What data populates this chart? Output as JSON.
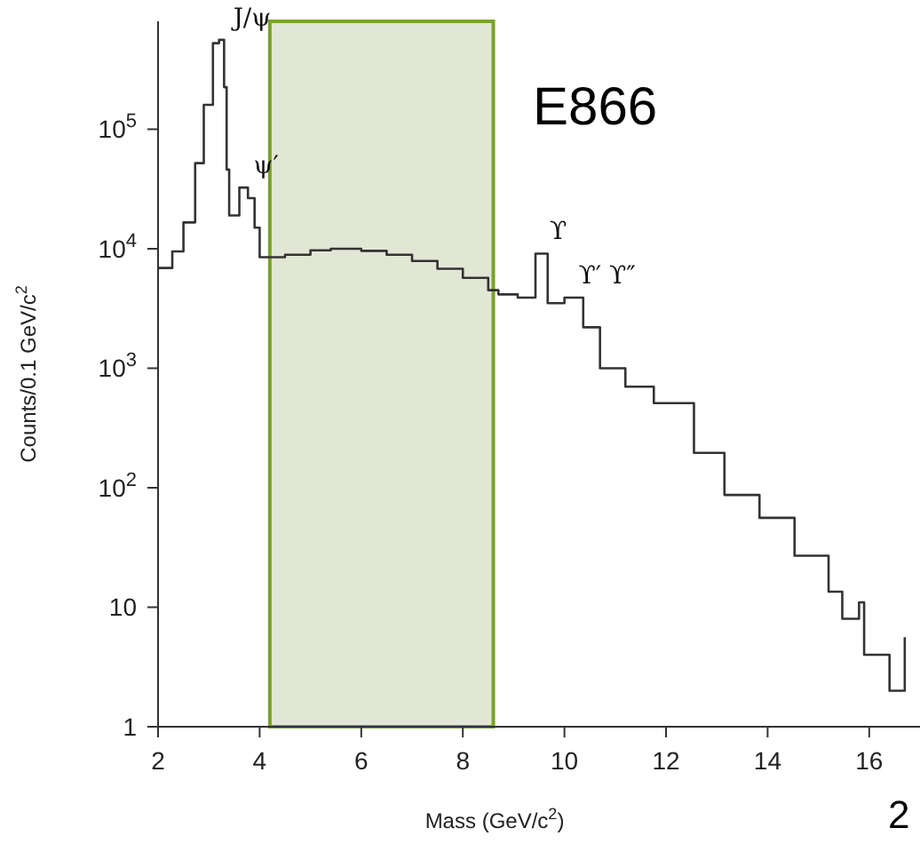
{
  "chart_data": {
    "type": "step",
    "xlabel": "Mass (GeV/c$^{2}$)",
    "ylabel": "Counts/0.1 GeV/c$^{2}$",
    "x": [
      2.0,
      2.28,
      2.5,
      2.73,
      2.9,
      3.08,
      3.2,
      3.3,
      3.35,
      3.4,
      3.6,
      3.77,
      3.9,
      4.0,
      4.2,
      4.5,
      5.0,
      5.4,
      6.0,
      6.5,
      7.0,
      7.5,
      8.0,
      8.5,
      8.7,
      9.08,
      9.43,
      9.67,
      10.0,
      10.37,
      10.7,
      11.2,
      11.76,
      12.55,
      13.15,
      13.84,
      14.53,
      15.2,
      15.47,
      15.8,
      15.9,
      16.4,
      16.7
    ],
    "series": [
      {
        "color": "#333333",
        "values": [
          6900,
          9500,
          16600,
          52000,
          160000,
          525000,
          560000,
          225000,
          46000,
          19000,
          32500,
          26500,
          15000,
          8500,
          8500,
          8900,
          9700,
          10000,
          9600,
          8900,
          7900,
          6800,
          5700,
          4500,
          4150,
          3900,
          9100,
          3500,
          3900,
          2200,
          1000,
          700,
          510,
          196,
          87,
          56,
          27,
          13.5,
          8,
          11,
          4,
          2,
          5.6
        ]
      }
    ],
    "xlim": [
      2,
      17
    ],
    "xticks": [
      2,
      4,
      6,
      8,
      10,
      12,
      14,
      16
    ],
    "log": true,
    "ylim": [
      1,
      800000
    ],
    "yticks": [
      1,
      10,
      {
        "value": 100,
        "label": "10$^{2}$"
      },
      {
        "value": 1000,
        "label": "10$^{3}$"
      },
      {
        "value": 10000,
        "label": "10$^{4}$"
      },
      {
        "value": 100000,
        "label": "10$^{5}$"
      }
    ],
    "marker": "none",
    "line_style": "solid",
    "bands": [
      {
        "axis": "x",
        "from": 4.2,
        "to": 8.6,
        "color": "#e2e6d5"
      }
    ],
    "annotations": [
      "E866",
      "2",
      {
        "text": "J/ψ",
        "x": 3.2,
        "y": 560000
      },
      {
        "text": "ψ′",
        "x": 3.6,
        "y": 32500
      },
      {
        "text": "ϒ",
        "x": 9.43,
        "y": 9100
      },
      {
        "text": "ϒ′ ϒ″",
        "x": 10.0,
        "y": 3900
      }
    ]
  }
}
